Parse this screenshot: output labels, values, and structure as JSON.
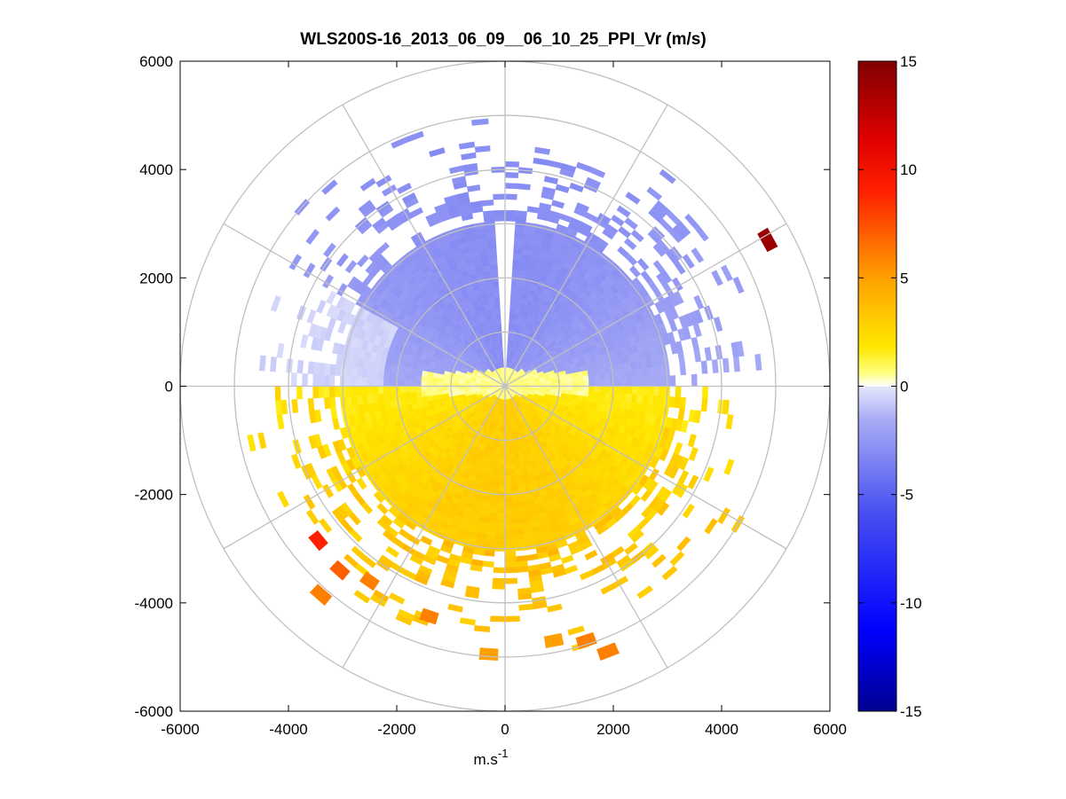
{
  "chart_data": {
    "type": "heatmap",
    "subtype": "polar-ppi",
    "title": "WLS200S-16_2013_06_09__06_10_25_PPI_Vr (m/s)",
    "xlabel_base": "m.s",
    "xlabel_exp": "-1",
    "ylabel": "",
    "xlim": [
      -6000,
      6000
    ],
    "ylim": [
      -6000,
      6000
    ],
    "x_ticks": [
      "-6000",
      "-4000",
      "-2000",
      "0",
      "2000",
      "4000",
      "6000"
    ],
    "y_ticks": [
      "6000",
      "4000",
      "2000",
      "0",
      "-2000",
      "-4000",
      "-6000"
    ],
    "x_tick_values": [
      -6000,
      -4000,
      -2000,
      0,
      2000,
      4000,
      6000
    ],
    "y_tick_values": [
      6000,
      4000,
      2000,
      0,
      -2000,
      -4000,
      -6000
    ],
    "range_rings": [
      1000,
      2000,
      3000,
      4000,
      5000,
      6000
    ],
    "azimuth_spokes_deg": [
      0,
      30,
      60,
      90,
      120,
      150,
      180,
      210,
      240,
      270,
      300,
      330
    ],
    "colorbar": {
      "min": -15,
      "max": 15,
      "ticks": [
        15,
        10,
        5,
        0,
        -5,
        -10,
        -15
      ],
      "tick_labels": [
        "15",
        "10",
        "5",
        "0",
        "-5",
        "-10",
        "-15"
      ],
      "colormap": "blue-white-yellow-red"
    },
    "grid": true,
    "field": {
      "description": "radial velocity field; northern half approaching (negative), southern half receding (positive)",
      "north_value": -2.5,
      "south_value": 2.5,
      "contiguous_range": 3000,
      "sparse_range": 5200,
      "strong_cells": [
        {
          "x": 4850,
          "y": 2700,
          "value": 14
        },
        {
          "x": -3450,
          "y": -2850,
          "value": 9
        },
        {
          "x": -3050,
          "y": -3400,
          "value": 7
        },
        {
          "x": -3400,
          "y": -3850,
          "value": 6
        },
        {
          "x": -1400,
          "y": -4250,
          "value": 6
        },
        {
          "x": 1900,
          "y": -4900,
          "value": 6
        },
        {
          "x": 1500,
          "y": -4700,
          "value": 6
        },
        {
          "x": 900,
          "y": -4700,
          "value": 5
        },
        {
          "x": -300,
          "y": -4950,
          "value": 5
        },
        {
          "x": -2500,
          "y": -3600,
          "value": 6
        }
      ]
    }
  },
  "colors": {
    "grid": "#c0c0c0",
    "axes": "#000000",
    "background": "#ffffff"
  }
}
